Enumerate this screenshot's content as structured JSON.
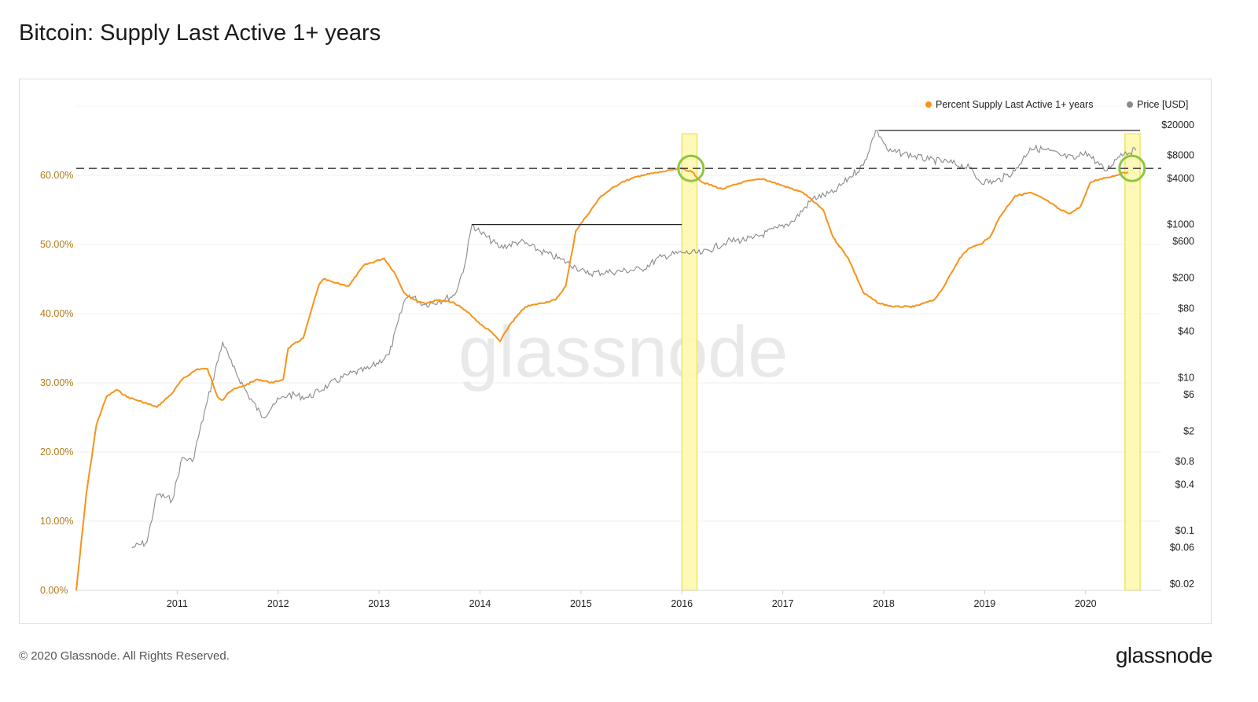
{
  "header": {
    "title": "Bitcoin: Supply Last Active 1+ years"
  },
  "footer": {
    "copyright": "© 2020 Glassnode. All Rights Reserved.",
    "brand": "glassnode"
  },
  "watermark": "glassnode",
  "colors": {
    "supply": "#f7931a",
    "price": "#8a8a8a",
    "highlight_fill": "#fff9b0",
    "highlight_stroke": "#e8e45a",
    "circle": "#8dc63f",
    "dashed": "#333333",
    "left_axis_text": "#b27a1a"
  },
  "chart_data": {
    "type": "line",
    "title": "Bitcoin: Supply Last Active 1+ years",
    "legend_position": "top-right",
    "grid": true,
    "x_ticks": [
      "2011",
      "2012",
      "2013",
      "2014",
      "2015",
      "2016",
      "2017",
      "2018",
      "2019",
      "2020"
    ],
    "x_range": [
      2010.0,
      2020.75
    ],
    "y_left": {
      "unit": "percent",
      "range": [
        0,
        70
      ],
      "ticks": [
        "0.00%",
        "10.00%",
        "20.00%",
        "30.00%",
        "40.00%",
        "50.00%",
        "60.00%"
      ],
      "tick_values": [
        0,
        10,
        20,
        30,
        40,
        50,
        60
      ]
    },
    "y_right": {
      "scale": "log",
      "range": [
        0.02,
        20000
      ],
      "ticks": [
        "$20000",
        "$8000",
        "$4000",
        "$1000",
        "$600",
        "$200",
        "$80",
        "$40",
        "$10",
        "$6",
        "$2",
        "$0.8",
        "$0.4",
        "$0.1",
        "$0.06",
        "$0.02"
      ],
      "tick_values": [
        20000,
        8000,
        4000,
        1000,
        600,
        200,
        80,
        40,
        10,
        6,
        2,
        0.8,
        0.4,
        0.1,
        0.06,
        0.02
      ]
    },
    "series": [
      {
        "name": "Percent Supply Last Active 1+ years",
        "axis": "left",
        "x": [
          2010.0,
          2010.1,
          2010.2,
          2010.3,
          2010.4,
          2010.5,
          2010.6,
          2010.8,
          2010.95,
          2011.05,
          2011.2,
          2011.3,
          2011.4,
          2011.45,
          2011.5,
          2011.55,
          2011.65,
          2011.8,
          2011.95,
          2012.05,
          2012.1,
          2012.25,
          2012.4,
          2012.45,
          2012.55,
          2012.7,
          2012.85,
          2013.05,
          2013.15,
          2013.25,
          2013.35,
          2013.45,
          2013.6,
          2013.75,
          2013.9,
          2014.0,
          2014.1,
          2014.2,
          2014.3,
          2014.45,
          2014.6,
          2014.75,
          2014.85,
          2014.95,
          2015.05,
          2015.2,
          2015.4,
          2015.6,
          2015.8,
          2016.0,
          2016.1,
          2016.2,
          2016.4,
          2016.6,
          2016.8,
          2017.0,
          2017.2,
          2017.4,
          2017.5,
          2017.65,
          2017.8,
          2017.95,
          2018.1,
          2018.3,
          2018.5,
          2018.6,
          2018.75,
          2018.85,
          2018.95,
          2019.05,
          2019.15,
          2019.3,
          2019.45,
          2019.6,
          2019.75,
          2019.85,
          2019.95,
          2020.05,
          2020.15,
          2020.3,
          2020.42
        ],
        "values": [
          0.0,
          14.0,
          24.0,
          28.0,
          29.0,
          28.0,
          27.5,
          26.5,
          28.5,
          30.5,
          32.0,
          32.0,
          28.0,
          27.5,
          28.5,
          29.0,
          29.5,
          30.5,
          30.0,
          30.5,
          35.0,
          36.5,
          44.0,
          45.0,
          44.5,
          44.0,
          47.0,
          48.0,
          46.0,
          43.0,
          42.0,
          41.5,
          42.0,
          41.5,
          40.0,
          38.5,
          37.5,
          36.0,
          38.5,
          41.0,
          41.5,
          42.0,
          44.0,
          52.0,
          54.0,
          57.0,
          59.0,
          60.0,
          60.5,
          61.0,
          60.5,
          59.0,
          58.0,
          59.0,
          59.5,
          58.5,
          57.5,
          55.0,
          51.0,
          48.0,
          43.0,
          41.5,
          41.0,
          41.0,
          42.0,
          44.0,
          48.0,
          49.5,
          50.0,
          51.0,
          54.0,
          57.0,
          57.5,
          56.5,
          55.0,
          54.5,
          55.5,
          59.0,
          59.5,
          60.0,
          60.5
        ]
      },
      {
        "name": "Price [USD]",
        "axis": "right",
        "x": [
          2010.55,
          2010.7,
          2010.8,
          2010.95,
          2011.05,
          2011.15,
          2011.3,
          2011.45,
          2011.55,
          2011.7,
          2011.85,
          2011.95,
          2012.1,
          2012.3,
          2012.5,
          2012.7,
          2012.9,
          2013.1,
          2013.25,
          2013.3,
          2013.45,
          2013.6,
          2013.75,
          2013.85,
          2013.92,
          2014.0,
          2014.2,
          2014.4,
          2014.6,
          2014.8,
          2014.95,
          2015.05,
          2015.3,
          2015.6,
          2015.8,
          2016.0,
          2016.2,
          2016.45,
          2016.7,
          2016.95,
          2017.1,
          2017.3,
          2017.5,
          2017.65,
          2017.8,
          2017.92,
          2017.97,
          2018.05,
          2018.2,
          2018.45,
          2018.65,
          2018.85,
          2018.95,
          2019.1,
          2019.3,
          2019.45,
          2019.6,
          2019.75,
          2019.9,
          2020.0,
          2020.2,
          2020.35,
          2020.5
        ],
        "values": [
          0.06,
          0.07,
          0.3,
          0.25,
          0.9,
          0.8,
          5.0,
          29.0,
          14.0,
          6.0,
          3.0,
          4.5,
          6.0,
          5.5,
          8.0,
          11.0,
          13.0,
          20.0,
          100.0,
          120.0,
          90.0,
          100.0,
          120.0,
          300.0,
          1000.0,
          800.0,
          500.0,
          600.0,
          450.0,
          350.0,
          280.0,
          230.0,
          240.0,
          260.0,
          380.0,
          430.0,
          420.0,
          600.0,
          650.0,
          900.0,
          1100.0,
          2200.0,
          2600.0,
          4000.0,
          6000.0,
          17000.0,
          14000.0,
          9000.0,
          8500.0,
          7000.0,
          6500.0,
          5500.0,
          3700.0,
          3600.0,
          5000.0,
          10000.0,
          9500.0,
          8000.0,
          7200.0,
          9000.0,
          5000.0,
          8500.0,
          9300.0
        ]
      }
    ],
    "annotations": {
      "dashed_level_percent": 61.0,
      "highlight_bands": [
        {
          "from": 2016.0,
          "to": 2016.15
        },
        {
          "from": 2020.39,
          "to": 2020.54
        }
      ],
      "circles": [
        {
          "x": 2016.09,
          "y_percent": 61.0
        },
        {
          "x": 2020.46,
          "y_percent": 61.0
        }
      ],
      "price_high_lines": [
        {
          "from": 2013.92,
          "to": 2016.0,
          "price": 1000.0
        },
        {
          "from": 2017.95,
          "to": 2020.54,
          "price": 17000.0
        }
      ]
    }
  }
}
